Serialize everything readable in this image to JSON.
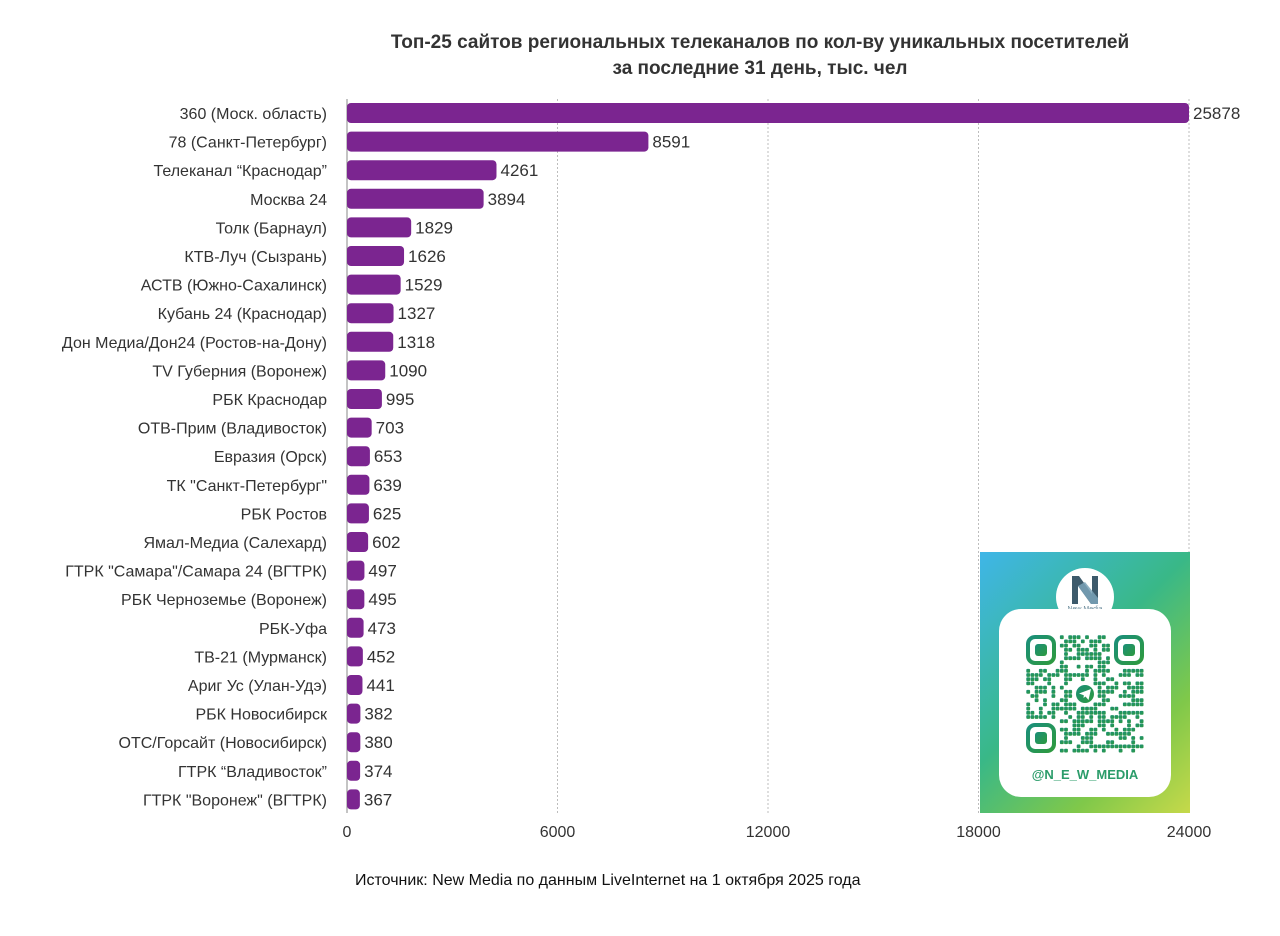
{
  "chart_data": {
    "type": "bar",
    "orientation": "horizontal",
    "title_lines": [
      "Топ-25 сайтов региональных телеканалов по кол-ву уникальных посетителей",
      "за последние 31 день, тыс. чел"
    ],
    "categories": [
      "360 (Моск. область)",
      "78 (Санкт-Петербург)",
      "Телеканал “Краснодар”",
      "Москва 24",
      "Толк (Барнаул)",
      "КТВ-Луч (Сызрань)",
      "АСТВ (Южно-Сахалинск)",
      "Кубань 24 (Краснодар)",
      "Дон Медиа/Дон24 (Ростов-на-Дону)",
      "TV Губерния (Воронеж)",
      "РБК Краснодар",
      "ОТВ-Прим (Владивосток)",
      "Евразия (Орск)",
      "ТК \"Санкт-Петербург\"",
      "РБК Ростов",
      "Ямал-Медиа (Салехард)",
      "ГТРК \"Самара\"/Самара 24 (ВГТРК)",
      "РБК Черноземье (Воронеж)",
      "РБК-Уфа",
      "ТВ-21 (Мурманск)",
      "Ариг Ус (Улан-Удэ)",
      "РБК Новосибирск",
      "ОТС/Горсайт (Новосибирск)",
      "ГТРК “Владивосток”",
      "ГТРК \"Воронеж\" (ВГТРК)"
    ],
    "values": [
      25878,
      8591,
      4261,
      3894,
      1829,
      1626,
      1529,
      1327,
      1318,
      1090,
      995,
      703,
      653,
      639,
      625,
      602,
      497,
      495,
      473,
      452,
      441,
      382,
      380,
      374,
      367
    ],
    "value_labels": [
      "25878",
      "8591",
      "4261",
      "3894",
      "1829",
      "1626",
      "1529",
      "1327",
      "1318",
      "1090",
      "995",
      "703",
      "653",
      "639",
      "625",
      "602",
      "497",
      "495",
      "473",
      "452",
      "441",
      "382",
      "380",
      "374",
      "367"
    ],
    "xlim": [
      0,
      24000
    ],
    "x_ticks": [
      0,
      6000,
      12000,
      18000,
      24000
    ],
    "x_tick_labels": [
      "0",
      "6000",
      "12000",
      "18000",
      "24000"
    ],
    "bar_color": "#7b2590",
    "grid": "vertical-dotted",
    "source": "Источник: New Media по данным LiveInternet на 1 октября 2025 года"
  },
  "promo": {
    "brand": "New Media",
    "handle": "@N_E_W_MEDIA",
    "qr_icon": "telegram-icon"
  }
}
